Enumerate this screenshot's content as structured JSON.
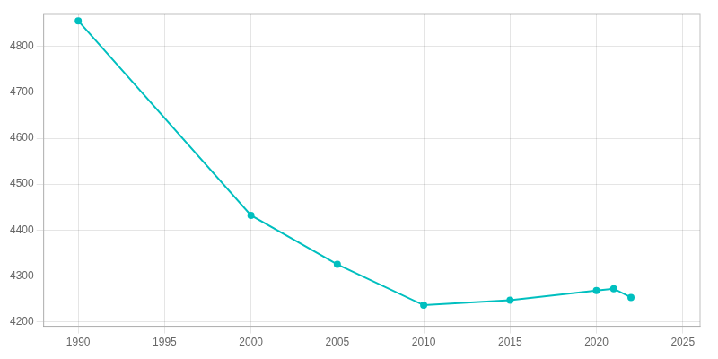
{
  "chart_data": {
    "type": "line",
    "x": [
      1990,
      2000,
      2005,
      2010,
      2015,
      2020,
      2021,
      2022
    ],
    "values": [
      4856,
      4432,
      4325,
      4236,
      4247,
      4268,
      4272,
      4253
    ],
    "color": "#00BFBF",
    "marker": "o",
    "xlim": [
      1988,
      2026
    ],
    "ylim": [
      4190,
      4870
    ],
    "xticks": [
      1990,
      1995,
      2000,
      2005,
      2010,
      2015,
      2020,
      2025
    ],
    "yticks": [
      4200,
      4300,
      4400,
      4500,
      4600,
      4700,
      4800
    ],
    "grid": true
  }
}
